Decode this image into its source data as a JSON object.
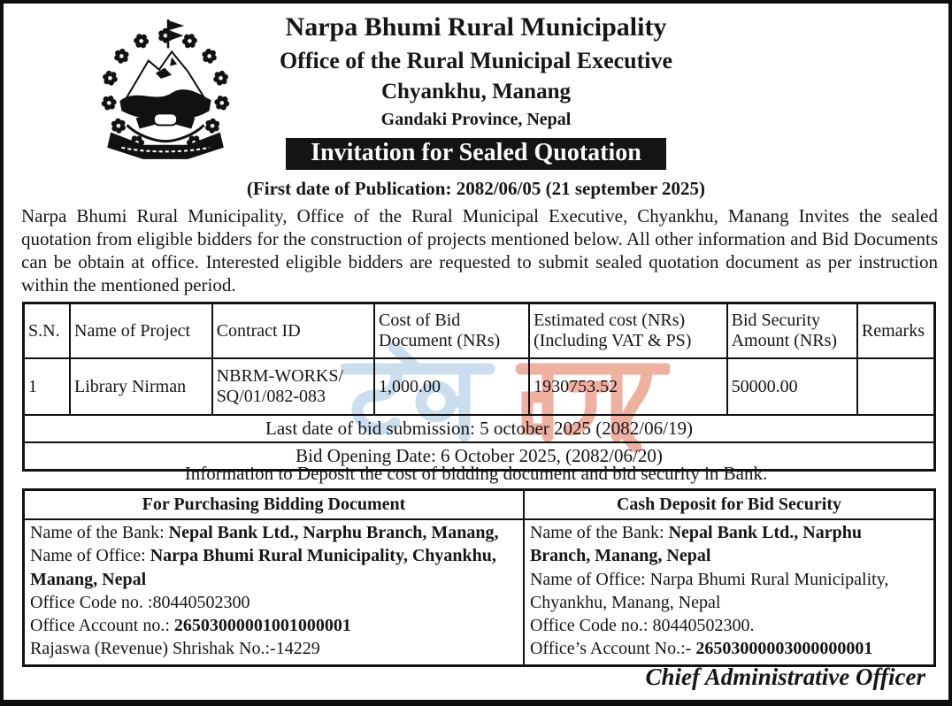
{
  "header": {
    "org_name": "Narpa Bhumi Rural Municipality",
    "office": "Office of the Rural Municipal Executive",
    "address": "Chyankhu, Manang",
    "province": "Gandaki Province, Nepal",
    "banner": "Invitation for Sealed Quotation",
    "logo_name": "nepal-government-emblem"
  },
  "notice": {
    "publication_line": "(First date of Publication: 2082/06/05 (21 september 2025)",
    "body": "Narpa Bhumi Rural Municipality, Office of the Rural Municipal Executive, Chyankhu, Manang Invites the sealed quotation from eligible bidders for the construction of projects mentioned below. All other information and Bid Documents can be obtain at office. Interested eligible bidders are requested to submit sealed quotation document as per instruction within the mentioned period."
  },
  "projects_table": {
    "headers": [
      "S.N.",
      "Name of Project",
      "Contract ID",
      "Cost of Bid Document (NRs)",
      "Estimated cost (NRs) (Including VAT & PS)",
      "Bid Security Amount (NRs)",
      "Remarks"
    ],
    "rows": [
      {
        "sn": "1",
        "name": "Library Nirman",
        "contract_id": "NBRM-WORKS/\nSQ/01/082-083",
        "cost": "1,000.00",
        "estimated": "1930753.52",
        "security": "50000.00",
        "remarks": ""
      }
    ],
    "last_date_line": "Last date of bid submission: 5 october 2025 (2082/06/19)",
    "opening_date_line": "Bid Opening Date: 6 October 2025, (2082/06/20)"
  },
  "deposit_info_line": "Information to Deposit the cost of bidding document and bid security in Bank.",
  "bank_table": {
    "left_header": "For Purchasing Bidding Document",
    "right_header": "Cash Deposit for Bid Security",
    "left_lines": [
      [
        {
          "t": "Name of the Bank: "
        },
        {
          "t": "Nepal Bank Ltd., Narphu Branch, Manang,",
          "b": true
        }
      ],
      [
        {
          "t": "Name of Office: "
        },
        {
          "t": "Narpa Bhumi Rural Municipality, Chyankhu,",
          "b": true
        }
      ],
      [
        {
          "t": "Manang, Nepal",
          "b": true
        }
      ],
      [
        {
          "t": "Office Code no. :80440502300"
        }
      ],
      [
        {
          "t": "Office Account no.: "
        },
        {
          "t": "26503000001001000001",
          "b": true
        }
      ],
      [
        {
          "t": "Rajaswa (Revenue) Shrishak No.:-14229"
        }
      ]
    ],
    "right_lines": [
      [
        {
          "t": "Name of the Bank: "
        },
        {
          "t": "Nepal Bank Ltd., Narphu",
          "b": true
        }
      ],
      [
        {
          "t": "Branch, Manang, Nepal",
          "b": true
        }
      ],
      [
        {
          "t": "Name of Office: Narpa Bhumi Rural Municipality,"
        }
      ],
      [
        {
          "t": "Chyankhu, Manang, Nepal"
        }
      ],
      [
        {
          "t": "Office Code no.: 80440502300."
        }
      ],
      [
        {
          "t": "Office’s Account No.:- "
        },
        {
          "t": "26503000003000000001",
          "b": true
        }
      ]
    ]
  },
  "signature": "Chief Administrative Officer",
  "watermark": {
    "text": "ठेका बजार",
    "color_blue": "#cadeee",
    "color_red": "#f0b0a0"
  }
}
